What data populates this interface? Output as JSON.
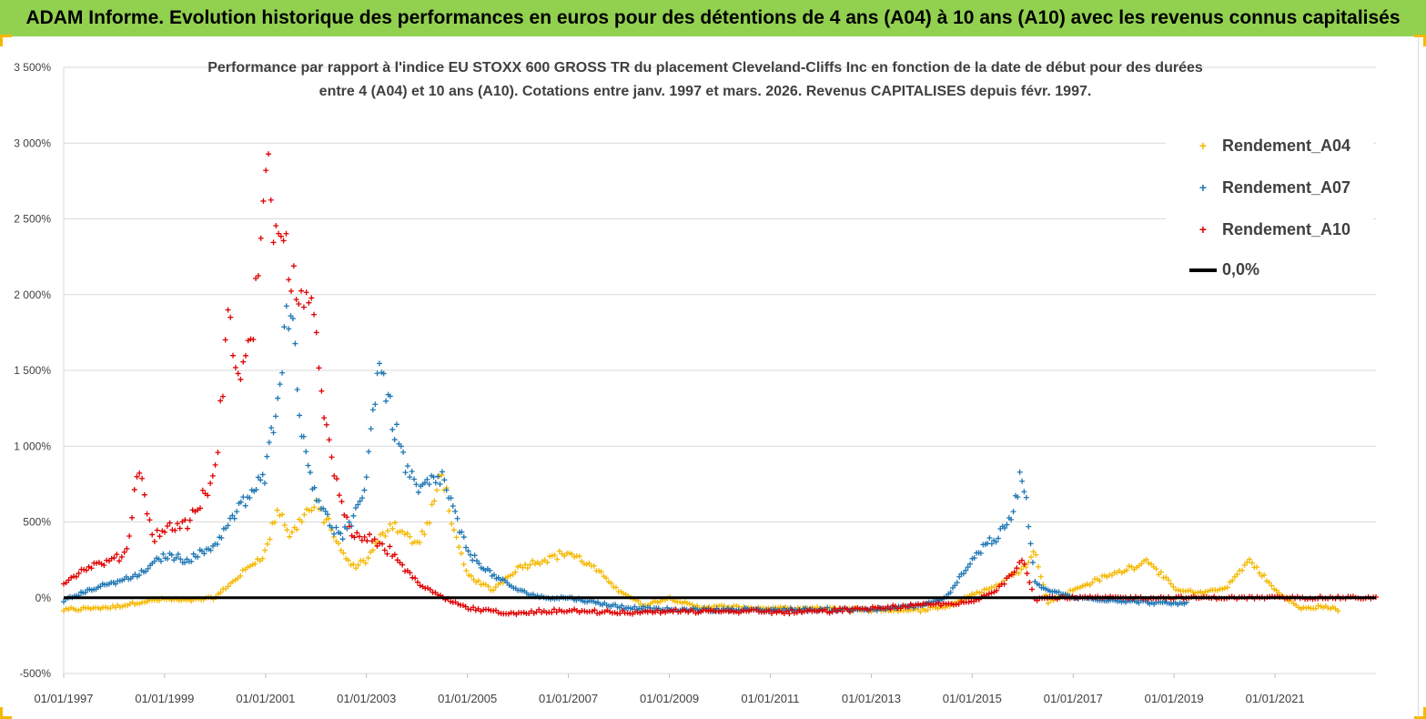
{
  "header": {
    "title": "ADAM Informe. Evolution historique des performances en euros pour des détentions de 4 ans (A04) à 10 ans (A10) avec les revenus connus capitalisés"
  },
  "chart": {
    "subtitle_line1": "Performance par rapport à l'indice EU STOXX 600 GROSS TR  du placement Cleveland-Cliffs Inc en fonction de la date de début pour des durées",
    "subtitle_line2": "entre 4 (A04) et 10 ans (A10). Cotations entre janv. 1997 et mars. 2026. Revenus CAPITALISES depuis févr. 1997."
  },
  "legend": {
    "items": [
      {
        "label": "Rendement_A04",
        "color": "#f5b800",
        "marker": "+"
      },
      {
        "label": "Rendement_A07",
        "color": "#1f77b4",
        "marker": "+"
      },
      {
        "label": "Rendement_A10",
        "color": "#e00000",
        "marker": "+"
      },
      {
        "label": "0,0%",
        "color": "#000000",
        "marker": "line"
      }
    ]
  },
  "chart_data": {
    "type": "scatter",
    "title": "Performance par rapport à l'indice EU STOXX 600 GROSS TR  du placement Cleveland-Cliffs Inc en fonction de la date de début pour des durées entre 4 (A04) et 10 ans (A10). Cotations entre janv. 1997 et mars. 2026. Revenus CAPITALISES depuis févr. 1997.",
    "xlabel": "",
    "ylabel": "",
    "xlim": [
      "1997-01-01",
      "2023-01-01"
    ],
    "ylim": [
      -500,
      3500
    ],
    "y_ticks": [
      "-500%",
      "0%",
      "500%",
      "1 000%",
      "1 500%",
      "2 000%",
      "2 500%",
      "3 000%",
      "3 500%"
    ],
    "x_ticks": [
      "01/01/1997",
      "01/01/1999",
      "01/01/2001",
      "01/01/2003",
      "01/01/2005",
      "01/01/2007",
      "01/01/2009",
      "01/01/2011",
      "01/01/2013",
      "01/01/2015",
      "01/01/2017",
      "01/01/2019",
      "01/01/2021"
    ],
    "grid": "horizontal",
    "legend_position": "top-right",
    "series": [
      {
        "name": "Rendement_A04",
        "color": "#f5b800",
        "x": [
          "1997-01-01",
          "1997-07-01",
          "1998-01-01",
          "1998-07-01",
          "1999-01-01",
          "1999-07-01",
          "2000-01-01",
          "2000-07-01",
          "2001-01-01",
          "2001-04-01",
          "2001-07-01",
          "2001-10-01",
          "2002-01-01",
          "2002-04-01",
          "2002-07-01",
          "2002-10-01",
          "2003-01-01",
          "2003-07-01",
          "2004-01-01",
          "2004-04-01",
          "2004-07-01",
          "2004-10-01",
          "2005-01-01",
          "2005-07-01",
          "2006-01-01",
          "2006-07-01",
          "2007-01-01",
          "2007-07-01",
          "2008-01-01",
          "2008-07-01",
          "2009-01-01",
          "2009-07-01",
          "2010-01-01",
          "2011-01-01",
          "2012-01-01",
          "2013-01-01",
          "2014-01-01",
          "2014-07-01",
          "2015-01-01",
          "2015-07-01",
          "2016-01-01",
          "2016-04-01",
          "2016-07-01",
          "2017-01-01",
          "2017-07-01",
          "2018-01-01",
          "2018-07-01",
          "2019-01-01",
          "2019-07-01",
          "2020-01-01",
          "2020-04-01",
          "2020-07-01",
          "2021-01-01",
          "2021-07-01",
          "2022-01-01",
          "2022-04-01"
        ],
        "y": [
          -80,
          -70,
          -60,
          -30,
          -10,
          -20,
          0,
          150,
          300,
          600,
          400,
          550,
          600,
          500,
          300,
          200,
          250,
          500,
          350,
          500,
          850,
          400,
          150,
          50,
          200,
          250,
          300,
          200,
          50,
          -50,
          0,
          -60,
          -60,
          -70,
          -70,
          -80,
          -80,
          -60,
          20,
          80,
          200,
          300,
          -30,
          50,
          120,
          180,
          250,
          60,
          30,
          60,
          150,
          250,
          50,
          -70,
          -60,
          -80
        ]
      },
      {
        "name": "Rendement_A07",
        "color": "#1f77b4",
        "x": [
          "1997-01-01",
          "1997-07-01",
          "1998-01-01",
          "1998-07-01",
          "1999-01-01",
          "1999-07-01",
          "2000-01-01",
          "2000-07-01",
          "2001-01-01",
          "2001-04-01",
          "2001-07-01",
          "2001-10-01",
          "2002-01-01",
          "2002-04-01",
          "2002-07-01",
          "2002-10-01",
          "2003-01-01",
          "2003-04-01",
          "2003-07-01",
          "2003-10-01",
          "2004-01-01",
          "2004-07-01",
          "2005-01-01",
          "2005-07-01",
          "2006-01-01",
          "2006-07-01",
          "2007-01-01",
          "2008-01-01",
          "2009-01-01",
          "2010-01-01",
          "2011-01-01",
          "2012-01-01",
          "2013-01-01",
          "2014-01-01",
          "2014-07-01",
          "2015-01-01",
          "2015-04-01",
          "2015-07-01",
          "2015-10-01",
          "2016-01-01",
          "2016-04-01",
          "2016-07-01",
          "2017-01-01",
          "2018-01-01",
          "2018-07-01",
          "2019-01-01",
          "2019-04-01"
        ],
        "y": [
          -20,
          50,
          100,
          150,
          280,
          250,
          350,
          600,
          800,
          1400,
          2000,
          1000,
          700,
          500,
          400,
          500,
          800,
          1600,
          1200,
          900,
          700,
          800,
          300,
          150,
          50,
          0,
          0,
          -60,
          -80,
          -80,
          -80,
          -80,
          -80,
          -50,
          0,
          250,
          350,
          400,
          500,
          850,
          100,
          50,
          0,
          -20,
          -30,
          -40,
          -40
        ]
      },
      {
        "name": "Rendement_A10",
        "color": "#e00000",
        "x": [
          "1997-01-01",
          "1997-07-01",
          "1998-01-01",
          "1998-04-01",
          "1998-07-01",
          "1998-10-01",
          "1999-01-01",
          "1999-07-01",
          "2000-01-01",
          "2000-04-01",
          "2000-07-01",
          "2000-10-01",
          "2001-01-01",
          "2001-04-01",
          "2001-07-01",
          "2001-10-01",
          "2002-01-01",
          "2002-04-01",
          "2002-07-01",
          "2002-10-01",
          "2003-01-01",
          "2003-07-01",
          "2004-01-01",
          "2004-07-01",
          "2005-01-01",
          "2005-07-01",
          "2006-01-01",
          "2007-01-01",
          "2008-01-01",
          "2009-01-01",
          "2010-01-01",
          "2011-01-01",
          "2012-01-01",
          "2013-01-01",
          "2014-01-01",
          "2015-01-01",
          "2015-07-01",
          "2016-01-01",
          "2016-04-01",
          "2016-07-01",
          "2017-01-01",
          "2018-01-01",
          "2019-01-01",
          "2020-01-01",
          "2021-01-01",
          "2022-01-01",
          "2023-01-01"
        ],
        "y": [
          100,
          200,
          250,
          300,
          900,
          400,
          450,
          500,
          800,
          1800,
          1500,
          1700,
          2900,
          2300,
          2200,
          1900,
          1800,
          1000,
          600,
          400,
          400,
          300,
          100,
          0,
          -70,
          -90,
          -100,
          -80,
          -100,
          -90,
          -90,
          -90,
          -90,
          -70,
          -50,
          -30,
          50,
          250,
          -10,
          0,
          0,
          0,
          0,
          0,
          0,
          0,
          0
        ]
      },
      {
        "name": "0,0%",
        "color": "#000000",
        "x": [
          "1997-01-01",
          "2023-01-01"
        ],
        "y": [
          0,
          0
        ]
      }
    ]
  }
}
